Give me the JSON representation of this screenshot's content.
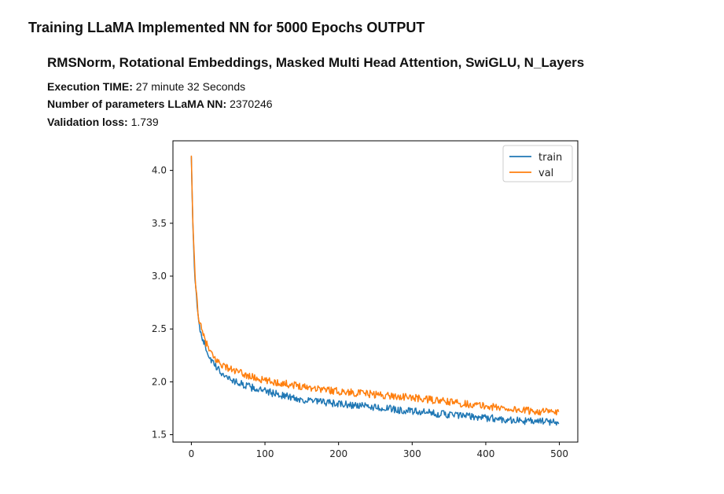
{
  "header": {
    "title": "Training LLaMA Implemented NN for 5000 Epochs OUTPUT",
    "subtitle": "RMSNorm, Rotational Embeddings, Masked Multi Head Attention, SwiGLU, N_Layers"
  },
  "stats": {
    "execution_label": "Execution TIME:",
    "execution_value": "27 minute 32 Seconds",
    "params_label": "Number of parameters LLaMA NN:",
    "params_value": "2370246",
    "val_loss_label": "Validation loss:",
    "val_loss_value": "1.739"
  },
  "colors": {
    "train": "#1f77b4",
    "val": "#ff7f0e",
    "axis": "#000000"
  },
  "chart_data": {
    "type": "line",
    "title": "",
    "xlabel": "",
    "ylabel": "",
    "xlim": [
      -25,
      525
    ],
    "ylim": [
      1.43,
      4.28
    ],
    "xticks": [
      0,
      100,
      200,
      300,
      400,
      500
    ],
    "yticks": [
      1.5,
      2.0,
      2.5,
      3.0,
      3.5,
      4.0
    ],
    "xtick_labels": [
      "0",
      "100",
      "200",
      "300",
      "400",
      "500"
    ],
    "ytick_labels": [
      "1.5",
      "2.0",
      "2.5",
      "3.0",
      "3.5",
      "4.0"
    ],
    "legend": {
      "position": "top-right",
      "entries": [
        "train",
        "val"
      ]
    },
    "series": [
      {
        "name": "train",
        "x": [
          0,
          2,
          5,
          10,
          15,
          20,
          25,
          30,
          40,
          50,
          60,
          80,
          100,
          120,
          150,
          200,
          250,
          300,
          350,
          400,
          450,
          499
        ],
        "values": [
          4.13,
          3.5,
          2.95,
          2.55,
          2.42,
          2.32,
          2.23,
          2.17,
          2.09,
          2.04,
          2.0,
          1.95,
          1.91,
          1.88,
          1.83,
          1.79,
          1.76,
          1.72,
          1.69,
          1.66,
          1.63,
          1.62
        ]
      },
      {
        "name": "val",
        "x": [
          0,
          2,
          5,
          10,
          15,
          20,
          25,
          30,
          40,
          50,
          60,
          80,
          100,
          120,
          150,
          200,
          250,
          300,
          350,
          400,
          450,
          499
        ],
        "values": [
          4.14,
          3.52,
          2.98,
          2.6,
          2.46,
          2.37,
          2.29,
          2.23,
          2.17,
          2.13,
          2.1,
          2.05,
          2.01,
          1.99,
          1.96,
          1.91,
          1.88,
          1.85,
          1.81,
          1.77,
          1.73,
          1.71
        ]
      }
    ]
  }
}
